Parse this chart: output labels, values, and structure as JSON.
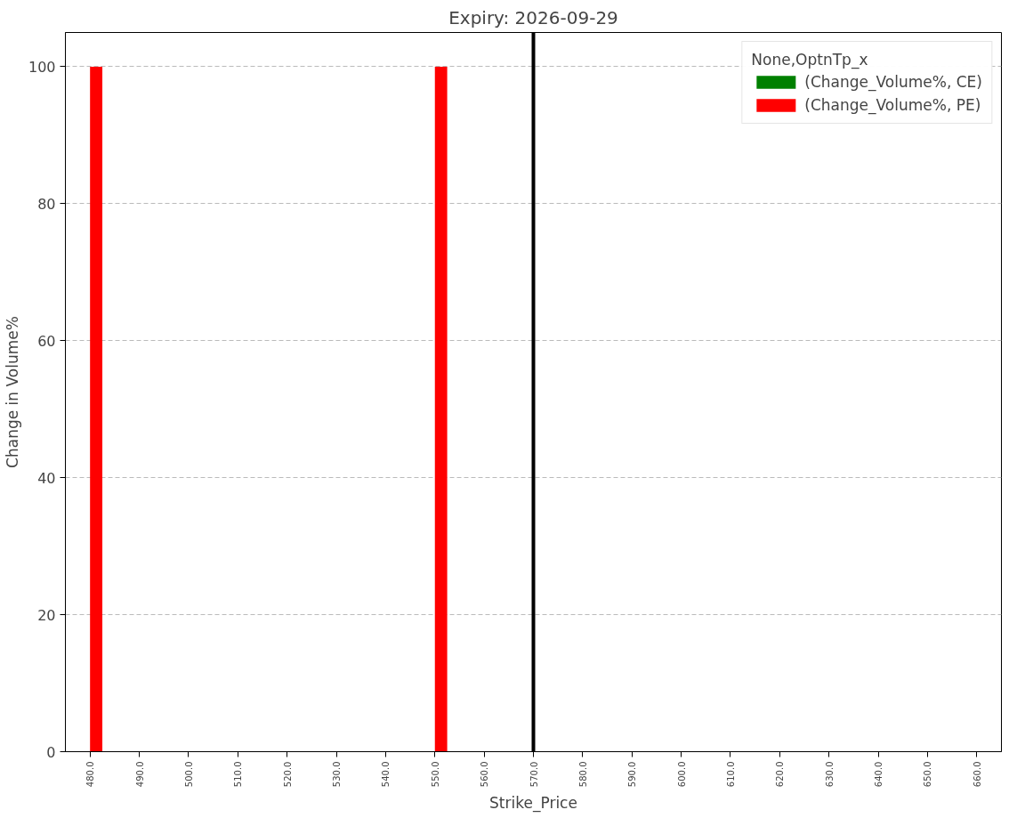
{
  "chart_data": {
    "type": "bar",
    "title": "Expiry: 2026-09-29",
    "xlabel": "Strike_Price",
    "ylabel": "Change in Volume%",
    "legend_title": "None,OptnTp_x",
    "categories": [
      "480.0",
      "490.0",
      "500.0",
      "510.0",
      "520.0",
      "530.0",
      "540.0",
      "550.0",
      "560.0",
      "570.0",
      "580.0",
      "590.0",
      "600.0",
      "610.0",
      "620.0",
      "630.0",
      "640.0",
      "650.0",
      "660.0"
    ],
    "series": [
      {
        "name": "(Change_Volume%, CE)",
        "color": "#008000",
        "values": [
          0,
          0,
          0,
          0,
          0,
          0,
          0,
          0,
          0,
          0,
          0,
          0,
          0,
          0,
          0,
          0,
          0,
          0,
          0
        ]
      },
      {
        "name": "(Change_Volume%, PE)",
        "color": "#ff0000",
        "values": [
          100,
          0,
          0,
          0,
          0,
          0,
          0,
          100,
          0,
          0,
          0,
          0,
          0,
          0,
          0,
          0,
          0,
          0,
          0
        ]
      }
    ],
    "ylim": [
      0,
      105
    ],
    "yticks": [
      0,
      20,
      40,
      60,
      80,
      100
    ],
    "grid": "y",
    "legend": "top right",
    "ref_lines": [
      {
        "axis": "x",
        "value": "570.0",
        "color": "#000000"
      }
    ]
  }
}
